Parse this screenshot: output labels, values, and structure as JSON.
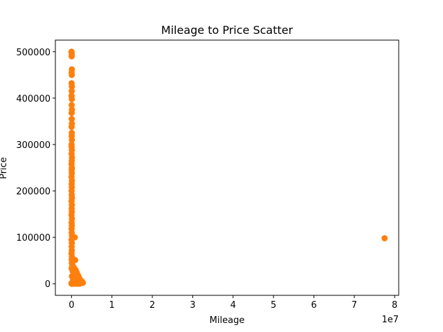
{
  "chart_data": {
    "type": "scatter",
    "title": "Mileage to Price Scatter",
    "xlabel": "Mileage",
    "ylabel": "Price",
    "x_offset_label": "1e7",
    "xlim": [
      -4000000,
      81000000
    ],
    "ylim": [
      -25000,
      525000
    ],
    "x_ticks": [
      0,
      10000000,
      20000000,
      30000000,
      40000000,
      50000000,
      60000000,
      70000000,
      80000000
    ],
    "x_tick_labels": [
      "0",
      "1",
      "2",
      "3",
      "4",
      "5",
      "6",
      "7",
      "8"
    ],
    "y_ticks": [
      0,
      100000,
      200000,
      300000,
      400000,
      500000
    ],
    "y_tick_labels": [
      "0",
      "100000",
      "200000",
      "300000",
      "400000",
      "500000"
    ],
    "grid": false,
    "marker_color": "#ff7f0e",
    "series": [
      {
        "points": [
          [
            0,
            500000
          ],
          [
            50000,
            495000
          ],
          [
            30000,
            490000
          ],
          [
            80000,
            462000
          ],
          [
            20000,
            455000
          ],
          [
            60000,
            450000
          ],
          [
            10000,
            432000
          ],
          [
            90000,
            425000
          ],
          [
            40000,
            415000
          ],
          [
            0,
            405000
          ],
          [
            70000,
            398000
          ],
          [
            30000,
            385000
          ],
          [
            100000,
            375000
          ],
          [
            20000,
            368000
          ],
          [
            50000,
            355000
          ],
          [
            80000,
            345000
          ],
          [
            10000,
            338000
          ],
          [
            60000,
            325000
          ],
          [
            40000,
            318000
          ],
          [
            90000,
            310000
          ],
          [
            0,
            300000
          ],
          [
            30000,
            295000
          ],
          [
            70000,
            288000
          ],
          [
            20000,
            280000
          ],
          [
            100000,
            272000
          ],
          [
            50000,
            265000
          ],
          [
            10000,
            258000
          ],
          [
            80000,
            250000
          ],
          [
            40000,
            245000
          ],
          [
            60000,
            238000
          ],
          [
            0,
            230000
          ],
          [
            90000,
            222000
          ],
          [
            30000,
            215000
          ],
          [
            70000,
            208000
          ],
          [
            20000,
            200000
          ],
          [
            50000,
            192000
          ],
          [
            100000,
            185000
          ],
          [
            10000,
            178000
          ],
          [
            80000,
            170000
          ],
          [
            40000,
            162000
          ],
          [
            60000,
            155000
          ],
          [
            0,
            148000
          ],
          [
            90000,
            140000
          ],
          [
            30000,
            132000
          ],
          [
            70000,
            125000
          ],
          [
            20000,
            118000
          ],
          [
            50000,
            110000
          ],
          [
            100000,
            104000
          ],
          [
            800000,
            100000
          ],
          [
            10000,
            95000
          ],
          [
            80000,
            88000
          ],
          [
            40000,
            80000
          ],
          [
            60000,
            72000
          ],
          [
            0,
            65000
          ],
          [
            90000,
            58000
          ],
          [
            30000,
            52000
          ],
          [
            900000,
            51000
          ],
          [
            70000,
            45000
          ],
          [
            200000,
            40000
          ],
          [
            500000,
            36000
          ],
          [
            20000,
            33000
          ],
          [
            1000000,
            30000
          ],
          [
            300000,
            27000
          ],
          [
            1300000,
            24000
          ],
          [
            600000,
            20000
          ],
          [
            1600000,
            18000
          ],
          [
            100000,
            16000
          ],
          [
            1800000,
            14000
          ],
          [
            800000,
            12000
          ],
          [
            2000000,
            10000
          ],
          [
            400000,
            9000
          ],
          [
            2200000,
            8000
          ],
          [
            1200000,
            7000
          ],
          [
            2400000,
            6000
          ],
          [
            700000,
            5000
          ],
          [
            2600000,
            4500
          ],
          [
            1500000,
            4000
          ],
          [
            200000,
            3000
          ],
          [
            1000000,
            2500
          ],
          [
            2800000,
            2000
          ],
          [
            500000,
            1500
          ],
          [
            0,
            1000
          ],
          [
            1700000,
            800
          ],
          [
            300000,
            500
          ],
          [
            900000,
            200
          ],
          [
            1400000,
            0
          ],
          [
            0,
            0
          ],
          [
            600000,
            0
          ],
          [
            2000000,
            0
          ],
          [
            77500000,
            98000
          ]
        ]
      }
    ]
  }
}
